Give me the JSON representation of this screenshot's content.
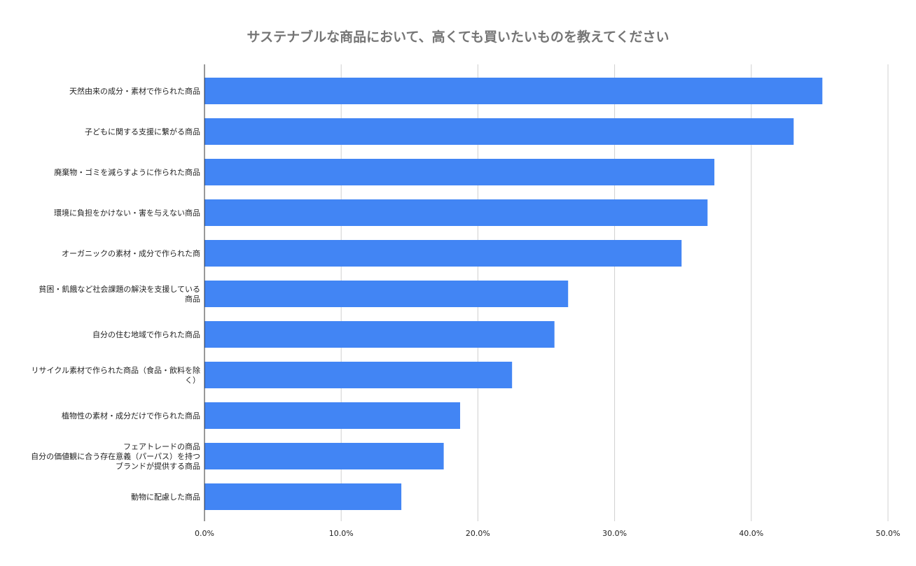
{
  "chart_data": {
    "type": "bar",
    "orientation": "horizontal",
    "title": "サステナブルな商品において、高くても買いたいものを教えてください",
    "xlabel": "",
    "ylabel": "",
    "xlim": [
      0,
      50
    ],
    "ticks": [
      "0.0%",
      "10.0%",
      "20.0%",
      "30.0%",
      "40.0%",
      "50.0%"
    ],
    "grid": true,
    "legend": "none",
    "color": "#4285f4",
    "categories": [
      [
        "天然由来の成分・素材で作られた商品"
      ],
      [
        "子どもに関する支援に繋がる商品"
      ],
      [
        "廃棄物・ゴミを減らすように作られた商品"
      ],
      [
        "環境に負担をかけない・害を与えない商品"
      ],
      [
        "オーガニックの素材・成分で作られた商"
      ],
      [
        "貧困・飢餓など社会課題の解決を支援している",
        "商品"
      ],
      [
        "自分の住む地域で作られた商品"
      ],
      [
        "リサイクル素材で作られた商品（食品・飲料を除",
        "く）"
      ],
      [
        "植物性の素材・成分だけで作られた商品"
      ],
      [
        "フェアトレードの商品",
        "自分の価値観に合う存在意義（パーパス）を持つ",
        "ブランドが提供する商品"
      ],
      [
        "動物に配慮した商品"
      ]
    ],
    "values": [
      45.2,
      43.1,
      37.3,
      36.8,
      34.9,
      26.6,
      25.6,
      22.5,
      18.7,
      17.5,
      14.4
    ]
  }
}
